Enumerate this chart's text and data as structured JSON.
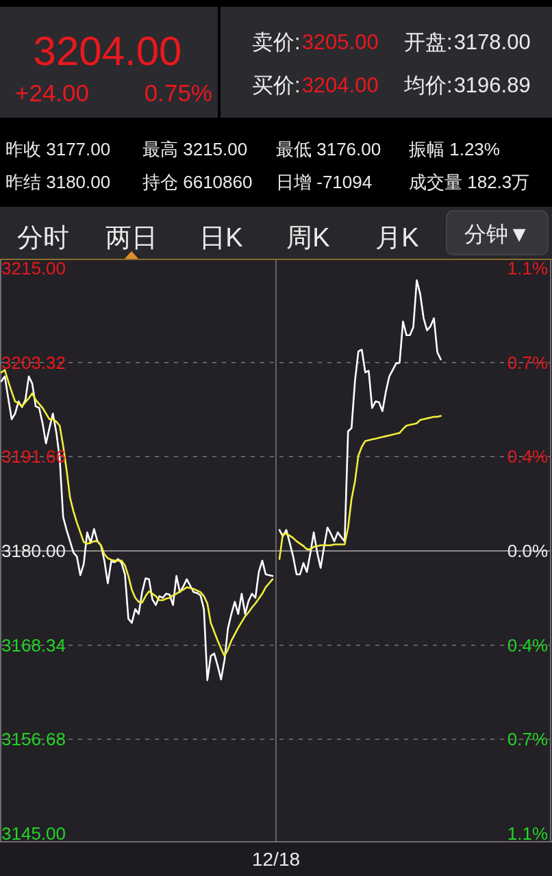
{
  "chart_data": [
    {
      "type": "other",
      "annotations": [
        "3204.00",
        "+24.00",
        "0.75%",
        "卖价:",
        "3205.00",
        "开盘:",
        "3178.00",
        "买价:",
        "3204.00",
        "均价:",
        "3196.89",
        "昨收 3177.00",
        "最高 3215.00",
        "最低 3176.00",
        "振幅 1.23%",
        "昨结 3180.00",
        "持仓 6610860",
        "日增 -71094",
        "成交量 182.3万",
        "分时",
        "两日",
        "日K",
        "周K",
        "月K",
        "分钟▼"
      ]
    },
    {
      "type": "line",
      "categories": [
        null,
        null,
        null,
        null,
        null,
        null,
        null,
        null,
        null,
        null,
        null,
        null,
        null,
        null,
        null,
        null,
        null,
        null,
        null,
        null,
        null,
        null,
        null,
        null,
        null,
        null,
        null,
        null,
        null,
        null,
        null,
        null,
        null,
        null,
        null,
        null,
        null,
        null,
        null,
        null,
        null,
        null,
        null,
        null,
        null,
        null,
        null,
        null,
        null,
        null,
        null,
        null,
        null,
        null,
        null,
        null,
        null,
        null,
        null,
        null,
        null,
        null,
        null,
        null,
        null,
        null,
        null,
        null,
        null,
        null,
        null,
        null,
        null,
        null,
        null,
        null,
        null,
        null,
        null,
        null,
        "12/18",
        null,
        null,
        null,
        null,
        null,
        null,
        null,
        null,
        null,
        null,
        null,
        null,
        null,
        null,
        null,
        null,
        null,
        null,
        null,
        null,
        null,
        null,
        null,
        null,
        null,
        null,
        null,
        null,
        null,
        null,
        null,
        null,
        null,
        null,
        null,
        null,
        null,
        null,
        null,
        null,
        null,
        null,
        null,
        null,
        null,
        null,
        null,
        null,
        null,
        null,
        null,
        null,
        null,
        null,
        null,
        null,
        null,
        null,
        null,
        null,
        null,
        null,
        null,
        null,
        null,
        null,
        null,
        null,
        null,
        null,
        null,
        null,
        null,
        null,
        null,
        null,
        null,
        null,
        null,
        null
      ],
      "series": [
        {
          "color": "#ffffff",
          "values": [
            3201.0,
            3201.6,
            3198.9,
            3196.3,
            3197.0,
            3198.5,
            3197.8,
            3198.7,
            3201.6,
            3200.7,
            3197.9,
            3197.7,
            3195.8,
            3193.3,
            3195.2,
            3197.0,
            3194.7,
            3191.4,
            3184.2,
            3182.6,
            3181.2,
            3179.8,
            3179.3,
            3177.0,
            3178.4,
            3182.3,
            3181.0,
            3182.7,
            3181.2,
            3180.7,
            3178.8,
            3176.0,
            3178.7,
            3178.6,
            3179.0,
            3178.5,
            3177.1,
            3171.6,
            3171.1,
            3172.8,
            3172.2,
            3174.9,
            3176.6,
            3176.5,
            3174.0,
            3173.3,
            3174.4,
            3174.2,
            3174.7,
            3174.6,
            3173.3,
            3176.9,
            3174.9,
            3175.6,
            3176.5,
            3175.7,
            3174.9,
            3174.8,
            3174.5,
            3172.8,
            3164.0,
            3167.0,
            3167.3,
            3165.8,
            3164.1,
            3166.5,
            3170.4,
            3172.2,
            3173.7,
            3172.2,
            3174.7,
            3172.2,
            3173.8,
            3174.7,
            3174.2,
            3177.4,
            3178.8,
            3177.1,
            3177.0,
            3176.9,
            null,
            3182.6,
            3181.8,
            3182.6,
            3181.0,
            3179.3,
            3177.1,
            3177.1,
            3178.5,
            3177.4,
            3179.7,
            3182.3,
            3179.8,
            3177.9,
            3180.5,
            3182.9,
            3182.1,
            3181.2,
            3182.3,
            3181.7,
            3181.2,
            3194.8,
            3195.2,
            3201.0,
            3204.7,
            3204.9,
            3202.1,
            3202.3,
            3197.7,
            3198.5,
            3198.4,
            3197.3,
            3199.7,
            3201.6,
            3202.4,
            3203.2,
            3203.3,
            3208.4,
            3206.7,
            3206.7,
            3207.7,
            3213.5,
            3211.8,
            3208.8,
            3207.3,
            3207.8,
            3208.8,
            3204.6,
            3203.7,
            null,
            null,
            null,
            null,
            null,
            null,
            null,
            null,
            null,
            null,
            null,
            null,
            null,
            null,
            null,
            null,
            null,
            null,
            null,
            null,
            null,
            null,
            null,
            null,
            null,
            null,
            null,
            null,
            null,
            null,
            null,
            null
          ]
        },
        {
          "color": "#f2ee3a",
          "values": [
            3202.1,
            3202.4,
            3201.0,
            3199.7,
            3198.5,
            3198.3,
            3197.9,
            3198.4,
            3198.9,
            3199.5,
            3198.7,
            3198.2,
            3197.7,
            3197.0,
            3196.3,
            3196.3,
            3196.0,
            3195.5,
            3193.0,
            3190.0,
            3186.6,
            3184.9,
            3183.5,
            3182.3,
            3181.1,
            3180.9,
            3181.0,
            3181.2,
            3181.2,
            3180.7,
            3179.6,
            3179.1,
            3178.9,
            3178.8,
            3178.8,
            3178.8,
            3178.2,
            3176.9,
            3175.2,
            3174.2,
            3173.7,
            3173.6,
            3174.4,
            3175.0,
            3174.7,
            3174.4,
            3173.9,
            3173.9,
            3174.1,
            3174.2,
            3174.5,
            3174.7,
            3175.0,
            3175.2,
            3175.5,
            3175.4,
            3175.3,
            3175.1,
            3174.9,
            3174.4,
            3173.5,
            3171.1,
            3170.0,
            3168.9,
            3167.9,
            3167.0,
            3167.8,
            3168.9,
            3169.7,
            3170.5,
            3171.2,
            3171.9,
            3172.4,
            3173.0,
            3173.5,
            3174.1,
            3174.7,
            3175.5,
            3176.0,
            3176.5,
            null,
            3179.0,
            3182.1,
            3182.1,
            3181.9,
            3181.6,
            3181.2,
            3180.9,
            3180.6,
            3180.2,
            3180.2,
            3180.5,
            3180.6,
            3180.7,
            3180.7,
            3180.7,
            3180.7,
            3180.8,
            3180.8,
            3180.8,
            3180.8,
            3182.9,
            3186.4,
            3188.6,
            3191.8,
            3192.9,
            3193.6,
            3193.7,
            3193.8,
            3193.9,
            3194.0,
            3194.1,
            3194.2,
            3194.3,
            3194.4,
            3194.5,
            3194.6,
            3195.1,
            3195.5,
            3195.6,
            3195.7,
            3195.8,
            3196.2,
            3196.3,
            3196.4,
            3196.5,
            3196.6,
            3196.6,
            3196.7,
            null,
            null,
            null,
            null,
            null,
            null,
            null,
            null,
            null,
            null,
            null,
            null,
            null,
            null,
            null,
            null,
            null,
            null,
            null,
            null,
            null,
            null,
            null,
            null,
            null,
            null,
            null,
            null,
            null,
            null,
            null,
            null
          ]
        }
      ],
      "ylim": [
        3144,
        3216
      ],
      "yticks": [
        {
          "value": 3215,
          "label": "3215.00"
        },
        {
          "value": 3203.32,
          "label": "3203.32"
        },
        {
          "value": 3191.66,
          "label": "3191.66"
        },
        {
          "value": 3180,
          "label": "3180.00"
        },
        {
          "value": 3168.34,
          "label": "3168.34"
        },
        {
          "value": 3156.68,
          "label": "3156.68"
        },
        {
          "value": 3145,
          "label": "3145.00"
        }
      ],
      "y2lim": [
        -1.131,
        1.131
      ],
      "y2ticks": [
        {
          "value": 1.1,
          "label": "1.1%"
        },
        {
          "value": 0.733,
          "label": "0.7%"
        },
        {
          "value": 0.367,
          "label": "0.4%"
        },
        {
          "value": 0,
          "label": "0.0%"
        },
        {
          "value": -0.367,
          "label": "0.4%"
        },
        {
          "value": -0.733,
          "label": "0.7%"
        },
        {
          "value": -1.1,
          "label": "1.1%"
        }
      ],
      "grid": true,
      "ref_lines": [
        {
          "axis": "y",
          "value": 3180,
          "color": "#8c8c8c"
        }
      ],
      "line_style": "solid"
    }
  ]
}
